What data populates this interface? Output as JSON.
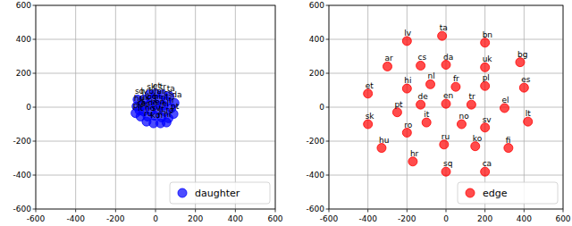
{
  "chart_data": [
    {
      "type": "scatter",
      "xlim": [
        -600,
        600
      ],
      "ylim": [
        -600,
        600
      ],
      "xticks": [
        -600,
        -400,
        -200,
        0,
        200,
        400,
        600
      ],
      "yticks": [
        -600,
        -400,
        -200,
        0,
        200,
        400,
        600
      ],
      "grid": true,
      "legend": "lower right",
      "series": [
        {
          "name": "daughter",
          "color": "#0000ff",
          "marker": "circle",
          "labels": [
            "sk",
            "et",
            "tr",
            "ta",
            "sq",
            "hu",
            "lv",
            "bn",
            "ar",
            "cs",
            "da",
            "uk",
            "bg",
            "hi",
            "nl",
            "fr",
            "pl",
            "es",
            "de",
            "en",
            "el",
            "pt",
            "it",
            "no",
            "sv",
            "lt",
            "ro",
            "ru",
            "ko",
            "fi",
            "hr",
            "ca"
          ],
          "x": [
            -30,
            0,
            35,
            70,
            -90,
            -95,
            -60,
            -20,
            20,
            55,
            95,
            -65,
            -30,
            5,
            40,
            80,
            -100,
            -60,
            -25,
            10,
            45,
            90,
            -75,
            -40,
            -5,
            30,
            65,
            -45,
            -10,
            25,
            55,
            -80
          ],
          "values": [
            75,
            80,
            75,
            65,
            45,
            5,
            45,
            45,
            45,
            35,
            25,
            10,
            15,
            15,
            10,
            -5,
            -35,
            -25,
            -20,
            -15,
            -25,
            -40,
            -55,
            -55,
            -50,
            -60,
            -65,
            -85,
            -95,
            -95,
            -90,
            -20
          ]
        }
      ]
    },
    {
      "type": "scatter",
      "xlim": [
        -600,
        600
      ],
      "ylim": [
        -600,
        600
      ],
      "xticks": [
        -600,
        -400,
        -200,
        0,
        200,
        400,
        600
      ],
      "yticks": [
        -600,
        -400,
        -200,
        0,
        200,
        400,
        600
      ],
      "grid": true,
      "legend": "lower right",
      "series": [
        {
          "name": "edge",
          "color": "#ff0000",
          "marker": "circle",
          "labels": [
            "lv",
            "ta",
            "bn",
            "ar",
            "cs",
            "da",
            "uk",
            "bg",
            "hi",
            "nl",
            "fr",
            "pl",
            "es",
            "et",
            "de",
            "en",
            "el",
            "pt",
            "it",
            "no",
            "tr",
            "sv",
            "lt",
            "sk",
            "ro",
            "ru",
            "ko",
            "fi",
            "hu",
            "hr",
            "sq",
            "ca"
          ],
          "x": [
            -200,
            -20,
            200,
            -300,
            -130,
            0,
            200,
            380,
            -200,
            -80,
            50,
            200,
            400,
            -400,
            -130,
            0,
            300,
            -250,
            -100,
            80,
            130,
            200,
            420,
            -400,
            -200,
            -10,
            150,
            320,
            -330,
            -170,
            0,
            200
          ],
          "values": [
            390,
            420,
            380,
            240,
            245,
            250,
            235,
            265,
            110,
            135,
            120,
            125,
            115,
            80,
            15,
            20,
            -5,
            -30,
            -90,
            -100,
            15,
            -120,
            -85,
            -100,
            -150,
            -220,
            -230,
            -240,
            -240,
            -320,
            -380,
            -380
          ]
        }
      ]
    }
  ]
}
